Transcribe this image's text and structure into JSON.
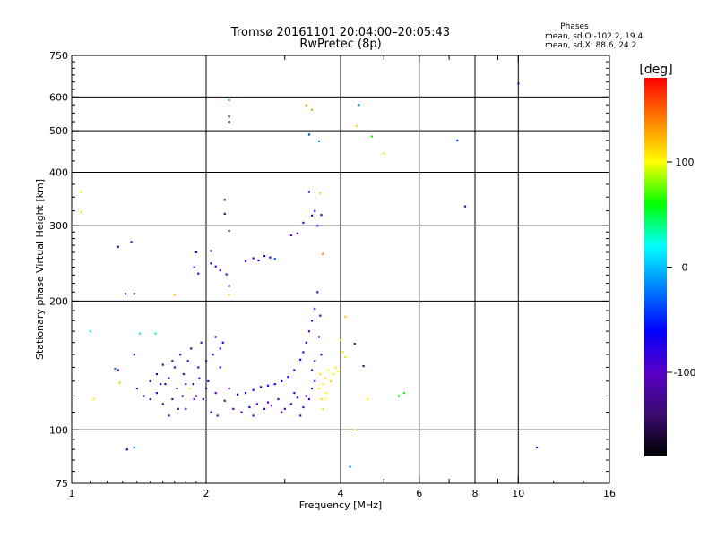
{
  "chart_data": {
    "type": "scatter",
    "title": "Tromsø 20161101 20:04:00–20:05:43",
    "subtitle": "RwPretec (8p)",
    "xlabel": "Frequency [MHz]",
    "ylabel": "Stationary phase Virtual Height [km]",
    "x_scale": "log",
    "y_scale": "log",
    "xlim": [
      1,
      16
    ],
    "ylim": [
      75,
      750
    ],
    "x_ticks": [
      1,
      2,
      4,
      6,
      8,
      10,
      16
    ],
    "x_tick_labels": [
      "1",
      "2",
      "4",
      "6",
      "8",
      "10",
      "16"
    ],
    "x_minor_ticks": [
      3,
      5,
      7,
      9
    ],
    "y_ticks": [
      75,
      100,
      200,
      300,
      400,
      500,
      600,
      750
    ],
    "y_tick_labels": [
      "75",
      "100",
      "200",
      "300",
      "400",
      "500",
      "600",
      "750"
    ],
    "grid": true,
    "legend": {
      "title": "Phases",
      "lines": [
        "mean, sd,O:-102.2, 19.4",
        "mean, sd,X:  88.6, 24.2"
      ],
      "placement": "top-right"
    },
    "colorbar": {
      "label": "[deg]",
      "range": [
        -180,
        180
      ],
      "ticks": [
        100,
        0,
        -100
      ],
      "tick_labels": [
        "100",
        "0",
        "-100"
      ],
      "colormap": [
        "#000000",
        "#3a0a6e",
        "#5a00c8",
        "#0000ff",
        "#0080ff",
        "#00ffff",
        "#00ff00",
        "#ffff00",
        "#ff8000",
        "#ff0000"
      ]
    },
    "series": [
      {
        "points": [
          [
            1.05,
            360,
            110
          ],
          [
            1.05,
            323,
            110
          ],
          [
            1.1,
            170,
            25
          ],
          [
            1.12,
            118,
            100
          ],
          [
            1.28,
            129,
            80
          ],
          [
            1.42,
            168,
            30
          ],
          [
            1.54,
            168,
            30
          ],
          [
            1.7,
            207,
            120
          ],
          [
            1.84,
            125,
            100
          ],
          [
            3.6,
            358,
            120
          ],
          [
            4.1,
            148,
            90
          ],
          [
            4.3,
            100,
            90
          ],
          [
            4.6,
            118,
            100
          ],
          [
            4.7,
            485,
            60
          ],
          [
            5.0,
            443,
            110
          ],
          [
            5.4,
            120,
            60
          ],
          [
            5.55,
            122,
            60
          ],
          [
            3.65,
            258,
            140
          ],
          [
            3.45,
            560,
            130
          ],
          [
            3.35,
            574,
            130
          ],
          [
            4.35,
            513,
            120
          ],
          [
            4.1,
            184,
            120
          ],
          [
            2.25,
            207,
            120
          ],
          [
            1.25,
            139,
            -20
          ],
          [
            2.25,
            590,
            -10
          ],
          [
            4.4,
            575,
            -10
          ],
          [
            3.4,
            490,
            -40
          ],
          [
            3.58,
            473,
            -20
          ],
          [
            7.3,
            475,
            -40
          ],
          [
            4.2,
            82,
            -10
          ],
          [
            1.38,
            91,
            -20
          ],
          [
            2.25,
            540,
            -150
          ],
          [
            2.25,
            525,
            -150
          ],
          [
            2.2,
            345,
            -140
          ],
          [
            2.2,
            320,
            -140
          ],
          [
            2.25,
            292,
            -140
          ],
          [
            1.27,
            268,
            -120
          ],
          [
            1.36,
            275,
            -120
          ],
          [
            1.33,
            90,
            -120
          ],
          [
            1.38,
            208,
            -130
          ],
          [
            1.32,
            208,
            -100
          ],
          [
            1.27,
            138,
            -110
          ],
          [
            1.38,
            150,
            -100
          ],
          [
            7.6,
            333,
            -120
          ],
          [
            10.0,
            645,
            -120
          ],
          [
            11.0,
            91,
            -110
          ],
          [
            4.5,
            141,
            -120
          ],
          [
            4.3,
            159,
            -110
          ],
          [
            1.9,
            260,
            -90
          ],
          [
            1.88,
            240,
            -90
          ],
          [
            1.92,
            232,
            -90
          ],
          [
            2.05,
            245,
            -90
          ],
          [
            2.1,
            241,
            -90
          ],
          [
            2.15,
            236,
            -90
          ],
          [
            2.22,
            231,
            -90
          ],
          [
            2.25,
            217,
            -90
          ],
          [
            2.05,
            262,
            -90
          ],
          [
            2.45,
            248,
            -90
          ],
          [
            2.55,
            252,
            -80
          ],
          [
            2.62,
            249,
            -80
          ],
          [
            2.7,
            255,
            -80
          ],
          [
            2.78,
            253,
            -80
          ],
          [
            2.85,
            251,
            -40
          ],
          [
            3.1,
            285,
            -100
          ],
          [
            3.2,
            288,
            -100
          ],
          [
            3.3,
            305,
            -100
          ],
          [
            3.45,
            317,
            -90
          ],
          [
            3.5,
            325,
            -80
          ],
          [
            3.55,
            300,
            -80
          ],
          [
            3.4,
            360,
            -60
          ],
          [
            3.62,
            318,
            -60
          ],
          [
            1.4,
            125,
            -120
          ],
          [
            1.45,
            120,
            -110
          ],
          [
            1.5,
            118,
            -120
          ],
          [
            1.55,
            122,
            -110
          ],
          [
            1.6,
            115,
            -120
          ],
          [
            1.62,
            128,
            -120
          ],
          [
            1.65,
            132,
            -110
          ],
          [
            1.68,
            118,
            -130
          ],
          [
            1.7,
            140,
            -110
          ],
          [
            1.72,
            125,
            -120
          ],
          [
            1.75,
            150,
            -110
          ],
          [
            1.78,
            135,
            -110
          ],
          [
            1.8,
            112,
            -120
          ],
          [
            1.82,
            145,
            -100
          ],
          [
            1.85,
            155,
            -110
          ],
          [
            1.87,
            128,
            -120
          ],
          [
            1.9,
            120,
            -130
          ],
          [
            1.92,
            140,
            -110
          ],
          [
            1.95,
            160,
            -100
          ],
          [
            1.97,
            118,
            -120
          ],
          [
            2.0,
            145,
            -110
          ],
          [
            2.02,
            130,
            -120
          ],
          [
            2.05,
            110,
            -110
          ],
          [
            2.07,
            150,
            -100
          ],
          [
            2.1,
            122,
            -100
          ],
          [
            2.12,
            108,
            -110
          ],
          [
            2.15,
            140,
            -80
          ],
          [
            2.18,
            160,
            -60
          ],
          [
            2.2,
            117,
            -110
          ],
          [
            2.25,
            125,
            -110
          ],
          [
            2.3,
            112,
            -100
          ],
          [
            2.1,
            165,
            -60
          ],
          [
            2.15,
            155,
            -50
          ],
          [
            1.55,
            135,
            -130
          ],
          [
            1.6,
            142,
            -120
          ],
          [
            1.65,
            108,
            -120
          ],
          [
            1.73,
            112,
            -130
          ],
          [
            1.8,
            128,
            -120
          ],
          [
            1.88,
            118,
            -110
          ],
          [
            2.0,
            125,
            -110
          ],
          [
            1.5,
            130,
            -130
          ],
          [
            1.58,
            128,
            -120
          ],
          [
            1.68,
            145,
            -120
          ],
          [
            1.77,
            120,
            -140
          ],
          [
            1.93,
            132,
            -120
          ],
          [
            2.35,
            121,
            -80
          ],
          [
            2.45,
            122,
            -70
          ],
          [
            2.55,
            124,
            -70
          ],
          [
            2.65,
            126,
            -60
          ],
          [
            2.75,
            127,
            -60
          ],
          [
            2.85,
            128,
            -60
          ],
          [
            2.95,
            130,
            -60
          ],
          [
            3.05,
            133,
            -60
          ],
          [
            3.15,
            138,
            -70
          ],
          [
            3.25,
            146,
            -70
          ],
          [
            3.3,
            152,
            -80
          ],
          [
            3.35,
            160,
            -90
          ],
          [
            3.4,
            170,
            -100
          ],
          [
            3.45,
            180,
            -100
          ],
          [
            3.5,
            192,
            -110
          ],
          [
            3.55,
            210,
            -110
          ],
          [
            3.6,
            185,
            -100
          ],
          [
            3.58,
            165,
            -100
          ],
          [
            3.62,
            150,
            -100
          ],
          [
            3.5,
            145,
            -110
          ],
          [
            3.45,
            138,
            -110
          ],
          [
            2.4,
            110,
            -90
          ],
          [
            2.5,
            113,
            -60
          ],
          [
            2.6,
            115,
            -100
          ],
          [
            2.7,
            112,
            -90
          ],
          [
            2.8,
            114,
            -110
          ],
          [
            2.9,
            118,
            -100
          ],
          [
            3.0,
            112,
            -110
          ],
          [
            3.1,
            115,
            -100
          ],
          [
            3.2,
            119,
            -110
          ],
          [
            3.3,
            113,
            -100
          ],
          [
            3.35,
            120,
            -110
          ],
          [
            3.4,
            118,
            -90
          ],
          [
            3.45,
            125,
            -110
          ],
          [
            3.5,
            130,
            -100
          ],
          [
            2.55,
            108,
            -80
          ],
          [
            2.75,
            116,
            -100
          ],
          [
            2.95,
            110,
            -110
          ],
          [
            3.15,
            122,
            -100
          ],
          [
            3.25,
            108,
            -110
          ],
          [
            3.6,
            135,
            110
          ],
          [
            3.65,
            128,
            100
          ],
          [
            3.7,
            132,
            110
          ],
          [
            3.75,
            138,
            100
          ],
          [
            3.8,
            130,
            110
          ],
          [
            3.85,
            135,
            100
          ],
          [
            3.9,
            140,
            110
          ],
          [
            3.95,
            137,
            100
          ],
          [
            3.7,
            118,
            100
          ],
          [
            3.65,
            112,
            110
          ],
          [
            3.72,
            122,
            100
          ],
          [
            4.05,
            152,
            110
          ],
          [
            4.0,
            162,
            110
          ],
          [
            3.58,
            125,
            100
          ],
          [
            3.62,
            118,
            110
          ]
        ]
      }
    ]
  }
}
